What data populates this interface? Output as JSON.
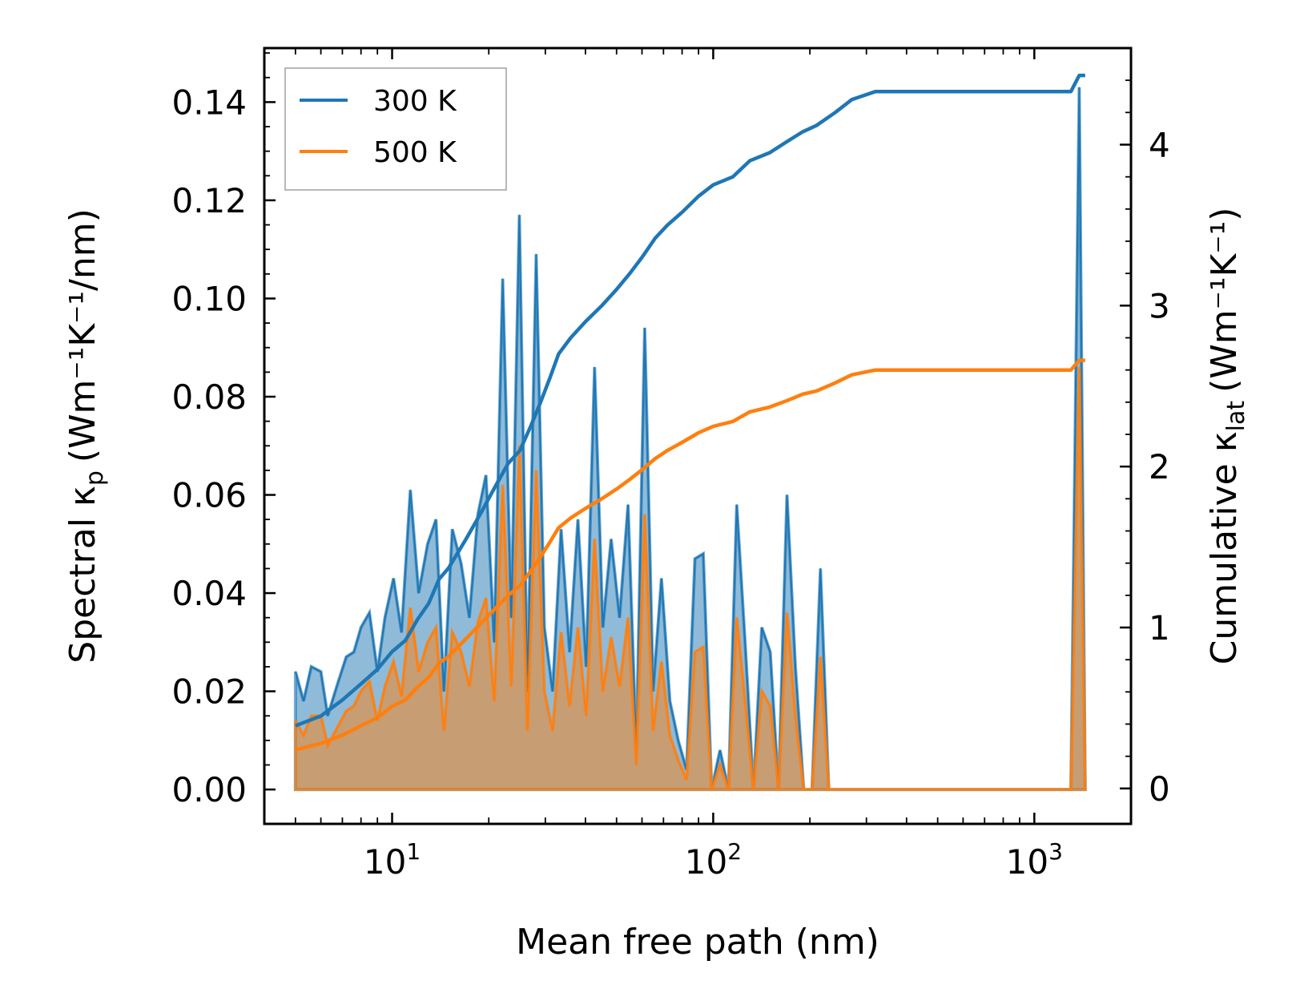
{
  "chart_data": {
    "type": "area+line",
    "title": "",
    "xlabel": "Mean free path (nm)",
    "ylabel_left": {
      "prefix": "Spectral κ",
      "sub": "p",
      "unit": "(Wm⁻¹K⁻¹/nm)"
    },
    "ylabel_right": {
      "prefix": "Cumulative κ",
      "sub": "lat",
      "unit": "(Wm⁻¹K⁻¹)"
    },
    "xscale": "log",
    "xlim": [
      4.0,
      2000
    ],
    "ylim_left": [
      -0.007,
      0.151
    ],
    "ylim_right": [
      -0.22,
      4.6
    ],
    "x_ticks": [
      {
        "value": 10,
        "base": "10",
        "exp": "1"
      },
      {
        "value": 100,
        "base": "10",
        "exp": "2"
      },
      {
        "value": 1000,
        "base": "10",
        "exp": "3"
      }
    ],
    "y_ticks_left": [
      "0.00",
      "0.02",
      "0.04",
      "0.06",
      "0.08",
      "0.10",
      "0.12",
      "0.14"
    ],
    "y_ticks_right": [
      "0",
      "1",
      "2",
      "3",
      "4"
    ],
    "legend": {
      "position": "top-left",
      "entries": [
        "300 K",
        "500 K"
      ]
    },
    "colors": {
      "300K": "#1f77b4",
      "500K": "#ff7f0e",
      "fill_300K": "#1f77b4",
      "fill_500K": "#ff7f0e"
    },
    "series": [
      {
        "name": "300 K",
        "axis": "left",
        "kind": "spectral",
        "x": [
          5.0,
          5.3,
          5.6,
          6.0,
          6.3,
          6.8,
          7.2,
          7.6,
          8.0,
          8.5,
          9.0,
          9.5,
          10.1,
          10.7,
          11.4,
          12.1,
          12.9,
          13.7,
          14.5,
          15.4,
          16.4,
          17.4,
          18.5,
          19.6,
          20.8,
          22.1,
          23.5,
          24.9,
          26.4,
          28.1,
          29.8,
          31.6,
          33.6,
          35.7,
          37.9,
          40.2,
          42.7,
          45.3,
          48.1,
          51.1,
          54.3,
          57.6,
          61.2,
          65.0,
          69.0,
          73.3,
          77.8,
          82.6,
          87.7,
          93.1,
          98.9,
          105.0,
          111.5,
          118.4,
          125.7,
          133.5,
          141.7,
          150.5,
          159.8,
          169.7,
          180.2,
          191.3,
          203.1,
          215.7,
          229.0,
          243.2,
          258.2,
          274.2,
          291.1,
          309.1,
          328.2,
          1300,
          1380,
          1440
        ],
        "values": [
          0.024,
          0.018,
          0.025,
          0.024,
          0.015,
          0.022,
          0.027,
          0.028,
          0.033,
          0.036,
          0.024,
          0.035,
          0.043,
          0.032,
          0.061,
          0.04,
          0.05,
          0.055,
          0.02,
          0.053,
          0.046,
          0.035,
          0.056,
          0.064,
          0.03,
          0.104,
          0.035,
          0.117,
          0.02,
          0.109,
          0.033,
          0.02,
          0.053,
          0.028,
          0.055,
          0.025,
          0.086,
          0.033,
          0.051,
          0.035,
          0.058,
          0.008,
          0.094,
          0.02,
          0.043,
          0.018,
          0.01,
          0.004,
          0.047,
          0.048,
          0.0,
          0.008,
          0.0,
          0.058,
          0.03,
          0.0,
          0.033,
          0.028,
          0.0,
          0.06,
          0.025,
          0.0,
          0.0,
          0.045,
          0.0,
          0.0,
          0.0,
          0.0,
          0.0,
          0.0,
          0.0,
          0.0,
          0.143,
          0.0
        ]
      },
      {
        "name": "500 K",
        "axis": "left",
        "kind": "spectral",
        "x": [
          5.0,
          5.3,
          5.6,
          6.0,
          6.3,
          6.8,
          7.2,
          7.6,
          8.0,
          8.5,
          9.0,
          9.5,
          10.1,
          10.7,
          11.4,
          12.1,
          12.9,
          13.7,
          14.5,
          15.4,
          16.4,
          17.4,
          18.5,
          19.6,
          20.8,
          22.1,
          23.5,
          24.9,
          26.4,
          28.1,
          29.8,
          31.6,
          33.6,
          35.7,
          37.9,
          40.2,
          42.7,
          45.3,
          48.1,
          51.1,
          54.3,
          57.6,
          61.2,
          65.0,
          69.0,
          73.3,
          77.8,
          82.6,
          87.7,
          93.1,
          98.9,
          105.0,
          111.5,
          118.4,
          125.7,
          133.5,
          141.7,
          150.5,
          159.8,
          169.7,
          180.2,
          191.3,
          203.1,
          215.7,
          229.0,
          243.2,
          258.2,
          274.2,
          291.1,
          309.1,
          328.2,
          1300,
          1380,
          1440
        ],
        "values": [
          0.014,
          0.011,
          0.015,
          0.015,
          0.009,
          0.013,
          0.016,
          0.017,
          0.02,
          0.022,
          0.014,
          0.021,
          0.026,
          0.019,
          0.037,
          0.024,
          0.03,
          0.033,
          0.012,
          0.032,
          0.028,
          0.021,
          0.034,
          0.039,
          0.018,
          0.062,
          0.021,
          0.07,
          0.012,
          0.065,
          0.02,
          0.012,
          0.032,
          0.017,
          0.033,
          0.015,
          0.051,
          0.02,
          0.031,
          0.021,
          0.035,
          0.005,
          0.056,
          0.012,
          0.026,
          0.011,
          0.006,
          0.002,
          0.028,
          0.029,
          0.0,
          0.005,
          0.0,
          0.035,
          0.018,
          0.0,
          0.02,
          0.017,
          0.0,
          0.036,
          0.015,
          0.0,
          0.0,
          0.027,
          0.0,
          0.0,
          0.0,
          0.0,
          0.0,
          0.0,
          0.0,
          0.0,
          0.086,
          0.0
        ]
      },
      {
        "name": "300 K",
        "axis": "right",
        "kind": "cumulative",
        "x": [
          5.0,
          6.0,
          7.0,
          8.0,
          9.0,
          10.0,
          11.0,
          12.0,
          13.0,
          14.0,
          15.0,
          17.0,
          19.0,
          21.0,
          23.0,
          25.0,
          27.0,
          29.0,
          31.0,
          33.0,
          36.0,
          40.0,
          45.0,
          50.0,
          55.0,
          60.0,
          66.0,
          72.0,
          80.0,
          90.0,
          100.0,
          115.0,
          130.0,
          150.0,
          170.0,
          190.0,
          210.0,
          240.0,
          270.0,
          320.0,
          500.0,
          800.0,
          1300.0,
          1380.0,
          1440.0
        ],
        "values": [
          0.39,
          0.45,
          0.55,
          0.65,
          0.74,
          0.85,
          0.92,
          1.05,
          1.15,
          1.3,
          1.37,
          1.55,
          1.72,
          1.88,
          2.02,
          2.1,
          2.25,
          2.4,
          2.55,
          2.7,
          2.8,
          2.9,
          3.0,
          3.1,
          3.2,
          3.3,
          3.42,
          3.5,
          3.58,
          3.68,
          3.75,
          3.8,
          3.9,
          3.95,
          4.02,
          4.08,
          4.12,
          4.2,
          4.28,
          4.33,
          4.33,
          4.33,
          4.33,
          4.43,
          4.43
        ]
      },
      {
        "name": "500 K",
        "axis": "right",
        "kind": "cumulative",
        "x": [
          5.0,
          6.0,
          7.0,
          8.0,
          9.0,
          10.0,
          11.0,
          12.0,
          13.0,
          14.0,
          15.0,
          17.0,
          19.0,
          21.0,
          23.0,
          25.0,
          27.0,
          29.0,
          31.0,
          33.0,
          36.0,
          40.0,
          45.0,
          50.0,
          55.0,
          60.0,
          66.0,
          72.0,
          80.0,
          90.0,
          100.0,
          115.0,
          130.0,
          150.0,
          170.0,
          190.0,
          210.0,
          240.0,
          270.0,
          320.0,
          500.0,
          800.0,
          1300.0,
          1380.0,
          1440.0
        ],
        "values": [
          0.24,
          0.28,
          0.33,
          0.39,
          0.44,
          0.51,
          0.55,
          0.63,
          0.69,
          0.78,
          0.82,
          0.93,
          1.03,
          1.12,
          1.2,
          1.26,
          1.35,
          1.44,
          1.53,
          1.62,
          1.68,
          1.74,
          1.8,
          1.86,
          1.92,
          1.98,
          2.05,
          2.1,
          2.15,
          2.21,
          2.25,
          2.28,
          2.34,
          2.37,
          2.41,
          2.45,
          2.47,
          2.52,
          2.57,
          2.6,
          2.6,
          2.6,
          2.6,
          2.66,
          2.66
        ]
      }
    ]
  }
}
